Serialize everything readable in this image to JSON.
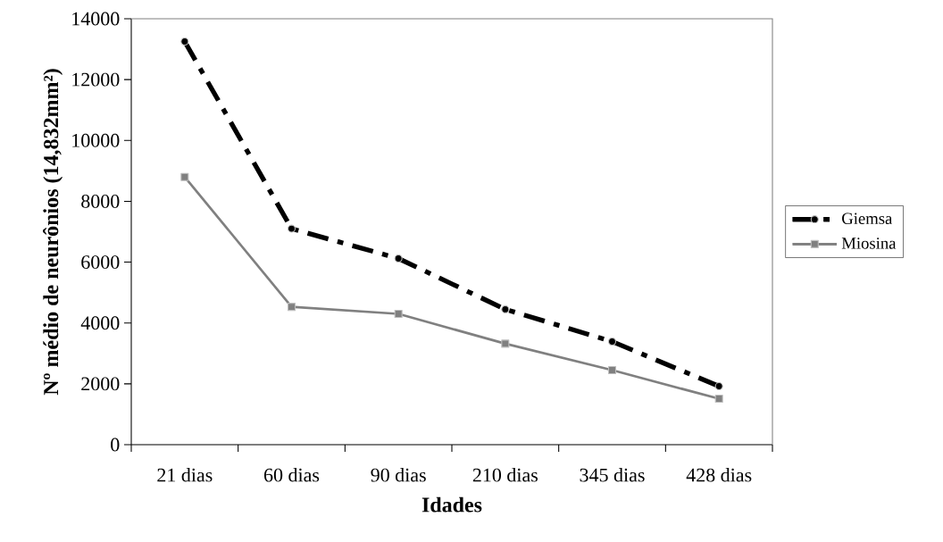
{
  "chart_data": {
    "type": "line",
    "xlabel": "Idades",
    "ylabel": "Nº médio de neurônios (14,832mm²)",
    "categories": [
      "21 dias",
      "60 dias",
      "90 dias",
      "210 dias",
      "345 dias",
      "428 dias"
    ],
    "series": [
      {
        "name": "Giemsa",
        "color": "#000000",
        "marker": "circle",
        "line_style": "dashed",
        "values": [
          13250,
          7100,
          6120,
          4450,
          3390,
          1920
        ]
      },
      {
        "name": "Miosina",
        "color": "#808080",
        "marker": "square",
        "line_style": "solid",
        "values": [
          8800,
          4530,
          4300,
          3320,
          2450,
          1510
        ]
      }
    ],
    "ylim": [
      0,
      14000
    ],
    "yticks": [
      0,
      2000,
      4000,
      6000,
      8000,
      10000,
      12000,
      14000
    ],
    "grid": false,
    "legend": "right"
  }
}
